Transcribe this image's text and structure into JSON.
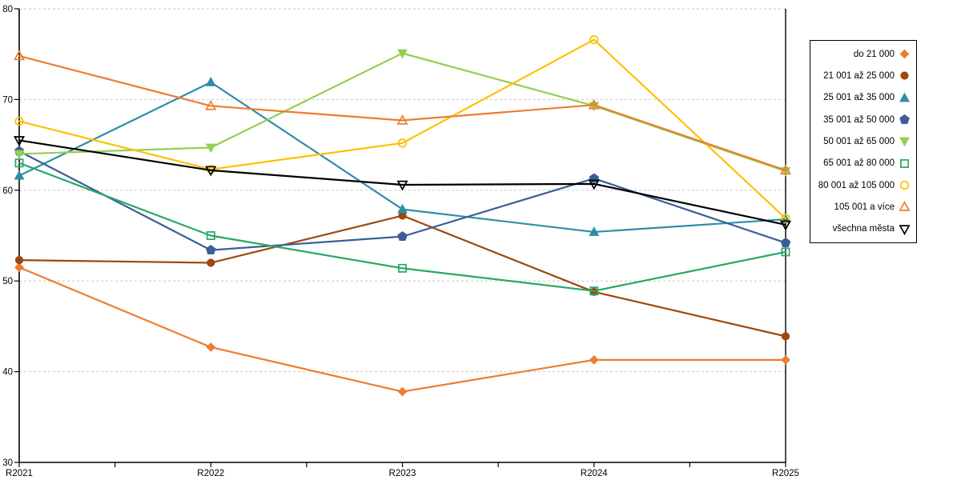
{
  "chart_data": {
    "type": "line",
    "title": "",
    "xlabel": "",
    "ylabel": "",
    "categories": [
      "R2021",
      "R2022",
      "R2023",
      "R2024",
      "R2025"
    ],
    "series": [
      {
        "name": "do 21 000",
        "color": "#ED7D31",
        "marker": "diamond",
        "fill": "filled",
        "values": [
          51.5,
          42.7,
          37.8,
          41.3,
          41.3
        ]
      },
      {
        "name": "21 001 až 25 000",
        "color": "#9E480E",
        "marker": "circle",
        "fill": "filled",
        "values": [
          52.3,
          52.0,
          57.2,
          48.8,
          43.9
        ]
      },
      {
        "name": "25 001 až 35 000",
        "color": "#2E8EA6",
        "marker": "triangle-up",
        "fill": "filled",
        "values": [
          61.6,
          71.9,
          57.9,
          55.4,
          56.8
        ]
      },
      {
        "name": "35 001 až 50 000",
        "color": "#3A5F96",
        "marker": "pentagon",
        "fill": "filled",
        "values": [
          64.3,
          53.4,
          54.9,
          61.3,
          54.2
        ]
      },
      {
        "name": "50 001 až 65 000",
        "color": "#92D050",
        "marker": "triangle-down",
        "fill": "filled",
        "values": [
          64.0,
          64.7,
          75.1,
          69.3,
          62.1
        ]
      },
      {
        "name": "65 001 až 80 000",
        "color": "#27A863",
        "marker": "square",
        "fill": "open",
        "values": [
          63.0,
          55.0,
          51.4,
          48.9,
          53.2
        ]
      },
      {
        "name": "80 001 až 105 000",
        "color": "#FFC000",
        "marker": "circle",
        "fill": "open",
        "values": [
          67.6,
          62.3,
          65.2,
          76.6,
          56.9
        ]
      },
      {
        "name": "105 001 a více",
        "color": "#ED7D31",
        "marker": "triangle-up",
        "fill": "open",
        "values": [
          74.8,
          69.3,
          67.7,
          69.4,
          62.2
        ]
      },
      {
        "name": "všechna města",
        "color": "#000000",
        "marker": "triangle-down",
        "fill": "open",
        "values": [
          65.5,
          62.2,
          60.6,
          60.7,
          56.2
        ]
      }
    ],
    "ylim": [
      30,
      80
    ],
    "yticks": [
      30,
      40,
      50,
      60,
      70,
      80
    ],
    "grid": "horizontal-dashed",
    "gridline_color": "#C8C8C8",
    "axis_color": "#000000",
    "legend_position": "right"
  }
}
